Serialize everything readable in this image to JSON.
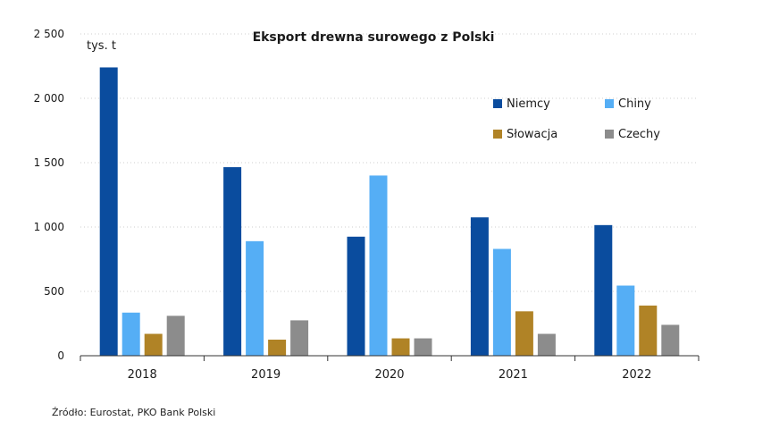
{
  "chart_data": {
    "type": "bar",
    "title": "Eksport drewna surowego z Polski",
    "unit_label": "tys. t",
    "categories": [
      "2018",
      "2019",
      "2020",
      "2021",
      "2022"
    ],
    "series": [
      {
        "name": "Niemcy",
        "color": "#0a4c9e",
        "values": [
          2240,
          1465,
          925,
          1075,
          1015
        ]
      },
      {
        "name": "Chiny",
        "color": "#55aef5",
        "values": [
          335,
          890,
          1400,
          830,
          545
        ]
      },
      {
        "name": "Słowacja",
        "color": "#b08326",
        "values": [
          170,
          125,
          135,
          345,
          390
        ]
      },
      {
        "name": "Czechy",
        "color": "#8c8c8c",
        "values": [
          310,
          275,
          135,
          170,
          240
        ]
      }
    ],
    "ylim": [
      0,
      2500
    ],
    "yticks": [
      0,
      500,
      1000,
      1500,
      2000,
      2500
    ],
    "ytick_labels": [
      "0",
      "500",
      "1 000",
      "1 500",
      "2 000",
      "2 500"
    ],
    "grid": true,
    "legend_position": "top-right"
  },
  "source": "Źródło: Eurostat, PKO Bank Polski"
}
